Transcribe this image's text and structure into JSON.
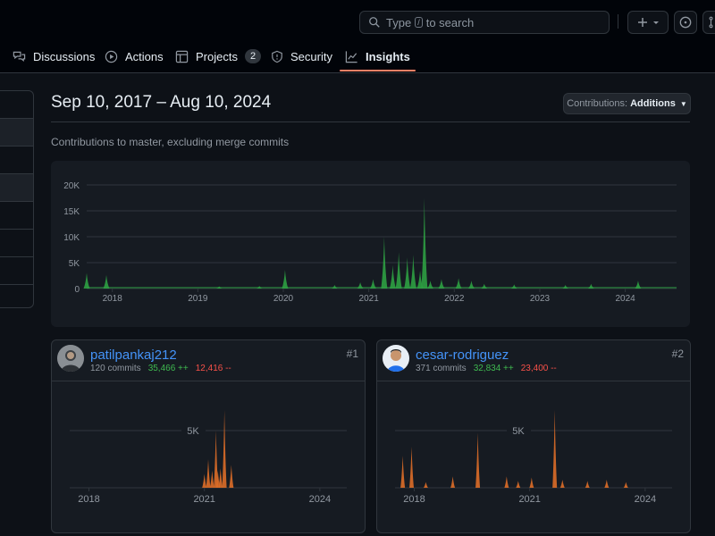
{
  "header": {
    "search_placeholder_before": "Type",
    "search_placeholder_key": "/",
    "search_placeholder_after": "to search"
  },
  "nav": {
    "tabs": [
      {
        "label": "Discussions",
        "icon": "comment-discussion-icon"
      },
      {
        "label": "Actions",
        "icon": "play-icon"
      },
      {
        "label": "Projects",
        "icon": "table-icon",
        "count": "2"
      },
      {
        "label": "Security",
        "icon": "shield-icon"
      },
      {
        "label": "Insights",
        "icon": "graph-icon",
        "active": true
      }
    ]
  },
  "page": {
    "date_range": "Sep 10, 2017 – Aug 10, 2024",
    "contributions_label": "Contributions:",
    "contributions_value": "Additions",
    "subtitle": "Contributions to master, excluding merge commits"
  },
  "main_chart": {
    "chart_data": {
      "type": "area",
      "title": "",
      "y_ticks": [
        "20K",
        "15K",
        "10K",
        "5K",
        "0"
      ],
      "ylim": [
        0,
        20000
      ],
      "x_ticks": [
        "2018",
        "2019",
        "2020",
        "2021",
        "2022",
        "2023",
        "2024"
      ],
      "color": "#2ea043",
      "series": [
        {
          "name": "Additions",
          "points": [
            [
              2017.7,
              3000
            ],
            [
              2017.93,
              2600
            ],
            [
              2019.25,
              400
            ],
            [
              2019.72,
              500
            ],
            [
              2020.02,
              3600
            ],
            [
              2020.6,
              700
            ],
            [
              2020.9,
              1200
            ],
            [
              2021.05,
              1800
            ],
            [
              2021.18,
              10000
            ],
            [
              2021.28,
              4500
            ],
            [
              2021.35,
              7000
            ],
            [
              2021.45,
              6000
            ],
            [
              2021.52,
              6500
            ],
            [
              2021.6,
              3500
            ],
            [
              2021.65,
              17500
            ],
            [
              2021.72,
              1500
            ],
            [
              2021.85,
              1800
            ],
            [
              2022.05,
              2000
            ],
            [
              2022.2,
              1500
            ],
            [
              2022.35,
              900
            ],
            [
              2022.7,
              800
            ],
            [
              2023.3,
              700
            ],
            [
              2023.6,
              900
            ],
            [
              2024.15,
              1500
            ]
          ]
        }
      ]
    }
  },
  "contributors": [
    {
      "username": "patilpankaj212",
      "commits": "120 commits",
      "additions": "35,466 ++",
      "deletions": "12,416 --",
      "rank": "#1",
      "chart_data": {
        "type": "area",
        "y_ticks": [
          "5K"
        ],
        "x_ticks": [
          "2018",
          "2021",
          "2024"
        ],
        "color": "#db6d28",
        "series": [
          {
            "name": "Additions",
            "points": [
              [
                2021.0,
                1200
              ],
              [
                2021.1,
                2500
              ],
              [
                2021.2,
                1500
              ],
              [
                2021.3,
                5000
              ],
              [
                2021.35,
                1500
              ],
              [
                2021.42,
                1700
              ],
              [
                2021.52,
                6800
              ],
              [
                2021.7,
                2000
              ]
            ]
          }
        ]
      }
    },
    {
      "username": "cesar-rodriguez",
      "commits": "371 commits",
      "additions": "32,834 ++",
      "deletions": "23,400 --",
      "rank": "#2",
      "chart_data": {
        "type": "area",
        "y_ticks": [
          "5K"
        ],
        "x_ticks": [
          "2018",
          "2021",
          "2024"
        ],
        "color": "#db6d28",
        "series": [
          {
            "name": "Additions",
            "points": [
              [
                2017.7,
                2800
              ],
              [
                2017.93,
                3600
              ],
              [
                2018.3,
                500
              ],
              [
                2019.0,
                1000
              ],
              [
                2019.65,
                4800
              ],
              [
                2020.4,
                1000
              ],
              [
                2020.7,
                600
              ],
              [
                2021.05,
                900
              ],
              [
                2021.65,
                6800
              ],
              [
                2021.85,
                700
              ],
              [
                2022.5,
                600
              ],
              [
                2023.0,
                700
              ],
              [
                2023.5,
                500
              ]
            ]
          }
        ]
      }
    }
  ]
}
